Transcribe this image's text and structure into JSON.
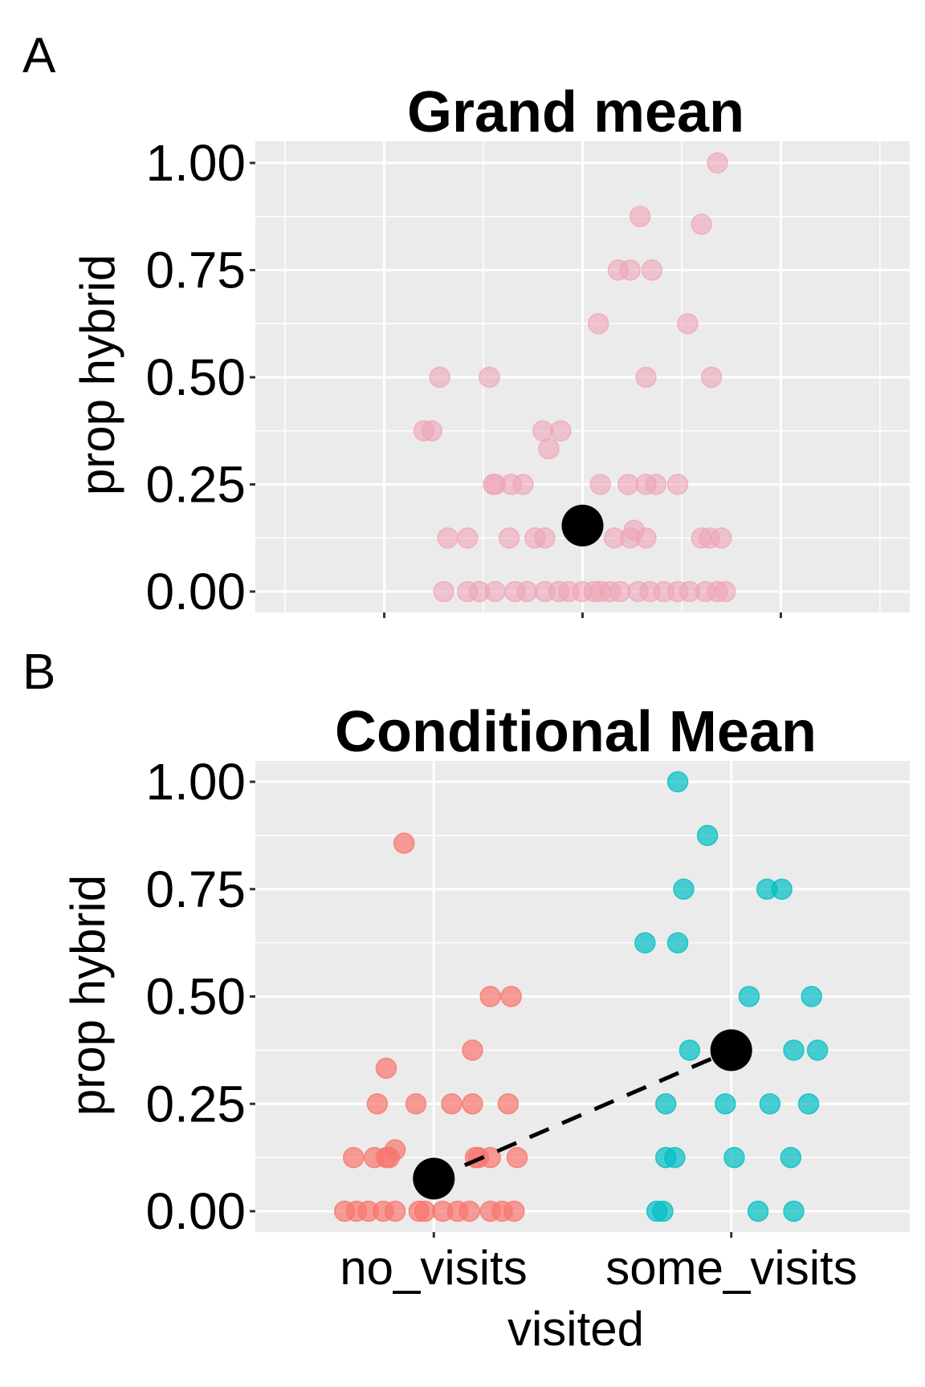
{
  "colors": {
    "panel_bg": "#EBEBEB",
    "grid": "#FFFFFF",
    "grand_points": "#EFA3B6",
    "no_visits": "#F8766D",
    "some_visits": "#00BFC4",
    "mean": "#000000"
  },
  "chart_data": [
    {
      "type": "scatter",
      "panel_tag": "A",
      "title": "Grand mean",
      "ylabel": "prop hybrid",
      "xlabel": "",
      "ylim": [
        0,
        1
      ],
      "yticks": [
        "0.00",
        "0.25",
        "0.50",
        "0.75",
        "1.00"
      ],
      "xlim": [
        -1.65,
        1.65
      ],
      "xticks_unlabeled": [
        -1,
        0,
        1
      ],
      "grid": true,
      "points": [
        [
          0.68,
          1.0
        ],
        [
          0.29,
          0.875
        ],
        [
          0.6,
          0.857
        ],
        [
          0.18,
          0.75
        ],
        [
          0.24,
          0.75
        ],
        [
          0.35,
          0.75
        ],
        [
          0.08,
          0.625
        ],
        [
          0.53,
          0.625
        ],
        [
          -0.72,
          0.5
        ],
        [
          -0.47,
          0.5
        ],
        [
          0.32,
          0.5
        ],
        [
          0.65,
          0.5
        ],
        [
          -0.8,
          0.375
        ],
        [
          -0.76,
          0.375
        ],
        [
          -0.2,
          0.375
        ],
        [
          -0.11,
          0.375
        ],
        [
          -0.17,
          0.333
        ],
        [
          -0.45,
          0.25
        ],
        [
          -0.44,
          0.25
        ],
        [
          -0.36,
          0.25
        ],
        [
          -0.3,
          0.25
        ],
        [
          0.09,
          0.25
        ],
        [
          0.23,
          0.25
        ],
        [
          0.32,
          0.25
        ],
        [
          0.37,
          0.25
        ],
        [
          0.48,
          0.25
        ],
        [
          -0.68,
          0.125
        ],
        [
          -0.58,
          0.125
        ],
        [
          -0.37,
          0.125
        ],
        [
          -0.24,
          0.125
        ],
        [
          -0.19,
          0.125
        ],
        [
          0.16,
          0.125
        ],
        [
          0.24,
          0.125
        ],
        [
          0.32,
          0.125
        ],
        [
          0.6,
          0.125
        ],
        [
          0.64,
          0.125
        ],
        [
          0.7,
          0.125
        ],
        [
          0.26,
          0.143
        ],
        [
          -0.7,
          0
        ],
        [
          -0.58,
          0
        ],
        [
          -0.52,
          0
        ],
        [
          -0.44,
          0
        ],
        [
          -0.34,
          0
        ],
        [
          -0.28,
          0
        ],
        [
          -0.19,
          0
        ],
        [
          -0.12,
          0
        ],
        [
          -0.07,
          0
        ],
        [
          0,
          0
        ],
        [
          0.06,
          0
        ],
        [
          0.09,
          0
        ],
        [
          0.14,
          0
        ],
        [
          0.19,
          0
        ],
        [
          0.28,
          0
        ],
        [
          0.34,
          0
        ],
        [
          0.41,
          0
        ],
        [
          0.48,
          0
        ],
        [
          0.54,
          0
        ],
        [
          0.62,
          0
        ],
        [
          0.68,
          0
        ],
        [
          0.72,
          0
        ]
      ],
      "mean": [
        0,
        0.154
      ]
    },
    {
      "type": "scatter",
      "panel_tag": "B",
      "title": "Conditional Mean",
      "ylabel": "prop hybrid",
      "xlabel": "visited",
      "categories": [
        "no_visits",
        "some_visits"
      ],
      "xlim": [
        0.4,
        2.6
      ],
      "ylim": [
        0,
        1
      ],
      "yticks": [
        "0.00",
        "0.25",
        "0.50",
        "0.75",
        "1.00"
      ],
      "grid": true,
      "series": [
        {
          "category": "no_visits",
          "mean": 0.076,
          "points": [
            [
              0.9,
              0.857
            ],
            [
              1.19,
              0.5
            ],
            [
              1.26,
              0.5
            ],
            [
              1.13,
              0.375
            ],
            [
              0.84,
              0.333
            ],
            [
              0.81,
              0.25
            ],
            [
              0.94,
              0.25
            ],
            [
              1.06,
              0.25
            ],
            [
              1.13,
              0.25
            ],
            [
              1.25,
              0.25
            ],
            [
              0.87,
              0.143
            ],
            [
              0.73,
              0.125
            ],
            [
              0.8,
              0.125
            ],
            [
              0.84,
              0.125
            ],
            [
              0.85,
              0.125
            ],
            [
              1.14,
              0.125
            ],
            [
              1.15,
              0.125
            ],
            [
              1.19,
              0.125
            ],
            [
              1.28,
              0.125
            ],
            [
              0.7,
              0
            ],
            [
              0.74,
              0
            ],
            [
              0.78,
              0
            ],
            [
              0.83,
              0
            ],
            [
              0.87,
              0
            ],
            [
              0.95,
              0
            ],
            [
              0.97,
              0
            ],
            [
              1.03,
              0
            ],
            [
              1.08,
              0
            ],
            [
              1.12,
              0
            ],
            [
              1.19,
              0
            ],
            [
              1.23,
              0
            ],
            [
              1.27,
              0
            ]
          ]
        },
        {
          "category": "some_visits",
          "mean": 0.375,
          "points": [
            [
              1.82,
              1.0
            ],
            [
              1.92,
              0.875
            ],
            [
              1.84,
              0.75
            ],
            [
              2.12,
              0.75
            ],
            [
              2.17,
              0.75
            ],
            [
              1.71,
              0.625
            ],
            [
              1.82,
              0.625
            ],
            [
              2.06,
              0.5
            ],
            [
              2.27,
              0.5
            ],
            [
              1.86,
              0.375
            ],
            [
              2.21,
              0.375
            ],
            [
              2.29,
              0.375
            ],
            [
              1.78,
              0.25
            ],
            [
              1.98,
              0.25
            ],
            [
              2.13,
              0.25
            ],
            [
              2.26,
              0.25
            ],
            [
              1.78,
              0.125
            ],
            [
              1.81,
              0.125
            ],
            [
              2.01,
              0.125
            ],
            [
              2.2,
              0.125
            ],
            [
              1.75,
              0
            ],
            [
              1.77,
              0
            ],
            [
              2.09,
              0
            ],
            [
              2.21,
              0
            ]
          ]
        }
      ],
      "mean_connector": "dashed"
    }
  ]
}
